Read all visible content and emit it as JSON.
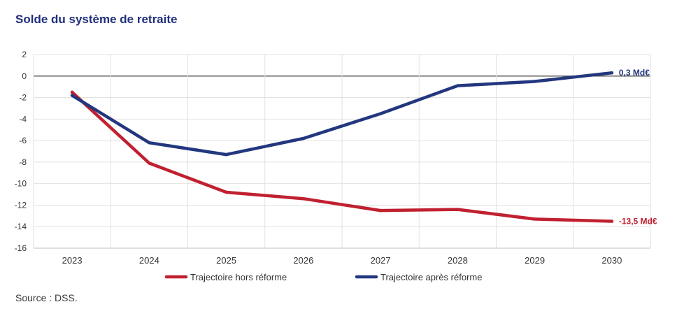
{
  "title": "Solde du système de retraite",
  "source": "Source : DSS.",
  "chart_data": {
    "type": "line",
    "title": "Solde du système de retraite",
    "xlabel": "",
    "ylabel": "",
    "categories": [
      "2023",
      "2024",
      "2025",
      "2026",
      "2027",
      "2028",
      "2029",
      "2030"
    ],
    "ylim": [
      -16,
      2
    ],
    "yticks": [
      2,
      0,
      -2,
      -4,
      -6,
      -8,
      -10,
      -12,
      -14,
      -16
    ],
    "grid": true,
    "legend_position": "bottom",
    "series": [
      {
        "name": "Trajectoire hors réforme",
        "color": "#c0202f",
        "values": [
          -1.5,
          -8.1,
          -10.8,
          -11.4,
          -12.5,
          -12.4,
          -13.3,
          -13.5
        ],
        "end_label": "-13,5 Md€"
      },
      {
        "name": "Trajectoire après réforme",
        "color": "#23377f",
        "values": [
          -1.8,
          -6.2,
          -7.3,
          -5.8,
          -3.5,
          -0.9,
          -0.5,
          0.3
        ],
        "end_label": "0,3 Md€"
      }
    ]
  }
}
